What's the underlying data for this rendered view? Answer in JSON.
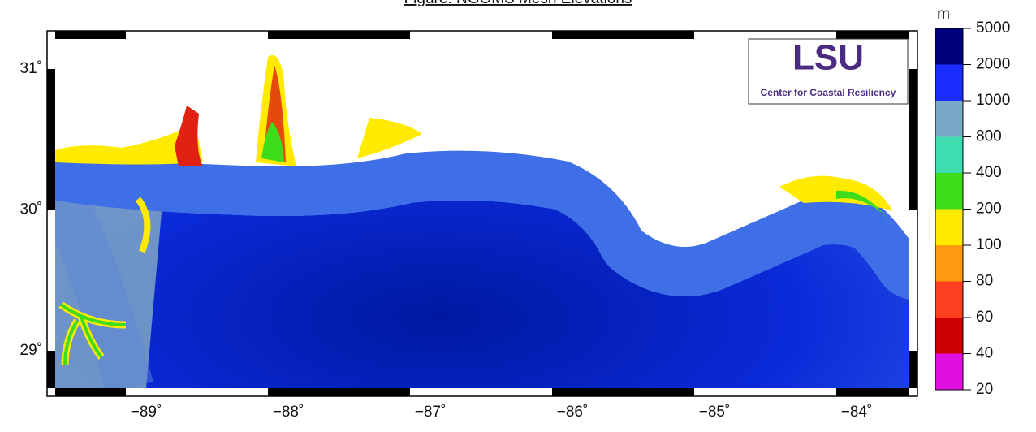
{
  "header": {
    "title": "Figure: NGOMS Mesh Elevations"
  },
  "map": {
    "x_labels": [
      "−89˚",
      "−88˚",
      "−87˚",
      "−86˚",
      "−85˚",
      "−84˚"
    ],
    "y_labels": [
      "31˚",
      "30˚",
      "29˚"
    ]
  },
  "logo": {
    "name": "LSU",
    "subtitle": "Center for Coastal Resiliency"
  },
  "colorbar": {
    "unit": "m",
    "labels": [
      "5000",
      "2000",
      "1000",
      "800",
      "400",
      "200",
      "100",
      "80",
      "60",
      "40",
      "20"
    ],
    "colors": [
      "#00007a",
      "#1a2cff",
      "#79a9c6",
      "#3fdcb0",
      "#3fdc1c",
      "#ffea00",
      "#ff9a10",
      "#ff4020",
      "#cc0000",
      "#e010e0"
    ]
  }
}
